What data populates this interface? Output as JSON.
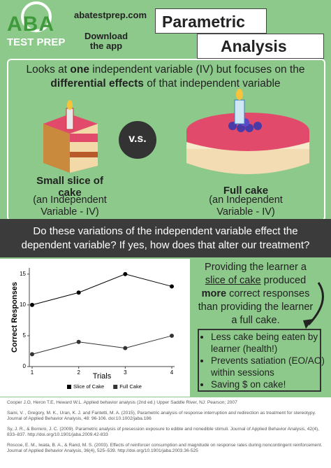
{
  "header": {
    "logo_top": "ABA",
    "logo_bottom": "TEST PREP",
    "site": "abatestprep.com",
    "download": "Download the app",
    "title_line1": "Parametric",
    "title_line2": "Analysis"
  },
  "intro": [
    "Looks at ",
    "one",
    " independent variable (IV) but focuses on the ",
    "differential effects",
    " of that independent variable"
  ],
  "vs": "v.s.",
  "small_cake": {
    "name": "Small slice of cake",
    "note": "(an Independent Variable - IV)"
  },
  "full_cake": {
    "name": "Full cake",
    "note": "(an Independent Variable - IV)"
  },
  "question": "Do these variations of the independent variable effect the dependent variable? If yes, how does that alter our treatment?",
  "chart_data": {
    "type": "line",
    "x_label": "Trials",
    "y_label": "Correct Responses",
    "x": [
      1,
      2,
      3,
      4
    ],
    "series": [
      {
        "name": "Slice of Cake",
        "color": "#000000",
        "values": [
          10,
          12,
          15,
          13
        ]
      },
      {
        "name": "Full Cake",
        "color": "#333333",
        "values": [
          2,
          4,
          3,
          5
        ]
      }
    ],
    "xlim": [
      1,
      4
    ],
    "xticks": [
      1,
      2,
      3,
      4
    ],
    "ylim": [
      0,
      16
    ],
    "yticks": [
      0,
      5,
      10,
      15
    ],
    "legend": "bottom"
  },
  "finding": [
    "Providing the learner a ",
    "slice of cake",
    " produced ",
    "more",
    " correct responses than providing the learner a full cake."
  ],
  "bullets": [
    "Less cake being eaten by learner (health!)",
    "Prevents satiation (EO/AO) within sessions",
    "Saving $ on cake!"
  ],
  "references": [
    "Cooper J.O, Heron T.E, Heward W.L. Applied behavior analysis (2nd ed.) Upper Saddle River, NJ: Pearson; 2007",
    "Saini, V. , Gregory, M. K., Uran, K. J. and Fantetti, M. A. (2015), Parametric analysis of response interruption and redirection as treatment for stereotypy. Journal of Applied Behavior Analysis, 48: 96-106. doi:10.1002/jaba.186",
    "Sy, J. R., & Borrero, J. C. (2009). Parametric analysis of presession exposure to edible and nonedible stimuli. Journal of Applied Behavior Analysis, 42(4), 833–837. http://doi.org/10.1901/jaba.2009.42-833",
    "Roscoe, E. M., Iwata, B. A., & Rand, M. S. (2003). Effects of reinforcer consumption and magnitude on response rates during noncontingent reinforcement. Journal of Applied Behavior Analysis, 36(4), 525–539. http://doi.org/10.1901/jaba.2003.36-525"
  ]
}
